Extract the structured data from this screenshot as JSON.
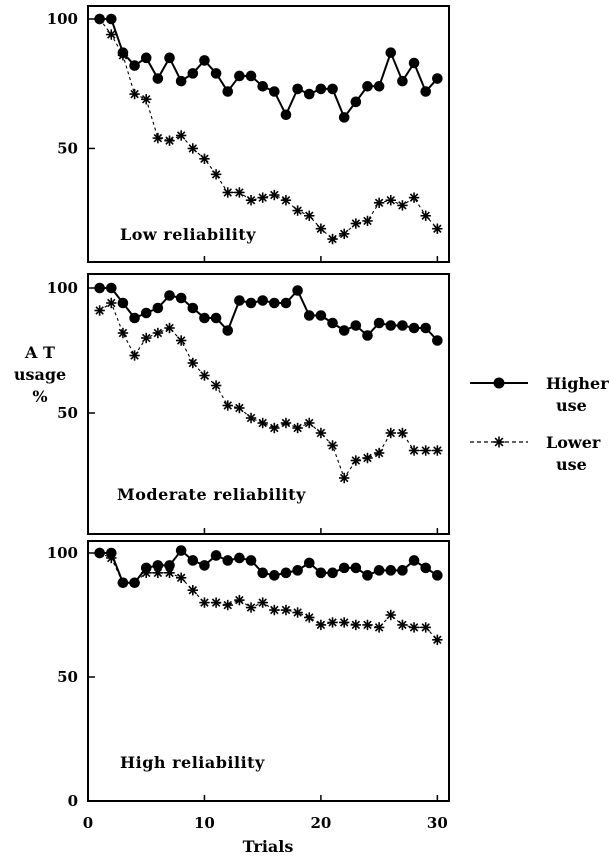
{
  "chart_data": {
    "type": "line",
    "xlabel": "Trials",
    "ylabel_lines": [
      "A T",
      "usage",
      "%"
    ],
    "xlim": [
      0,
      31
    ],
    "x_ticks": [
      0,
      10,
      20,
      30
    ],
    "x": [
      1,
      2,
      3,
      4,
      5,
      6,
      7,
      8,
      9,
      10,
      11,
      12,
      13,
      14,
      15,
      16,
      17,
      18,
      19,
      20,
      21,
      22,
      23,
      24,
      25,
      26,
      27,
      28,
      29,
      30
    ],
    "legend": {
      "placement": "right",
      "entries": [
        {
          "key": "higher",
          "line1": "Higher",
          "line2": "use",
          "marker": "circle",
          "line_style": "solid"
        },
        {
          "key": "lower",
          "line1": "Lower",
          "line2": "use",
          "marker": "asterisk",
          "line_style": "dashed"
        }
      ]
    },
    "panels": [
      {
        "label": "Low reliability",
        "ylim": [
          10,
          104
        ],
        "y_ticks": [
          50,
          100
        ],
        "series": {
          "higher": [
            100,
            100,
            87,
            82,
            85,
            77,
            85,
            76,
            79,
            84,
            79,
            72,
            78,
            78,
            74,
            72,
            63,
            73,
            71,
            73,
            73,
            62,
            68,
            74,
            74,
            87,
            76,
            83,
            72,
            77
          ],
          "lower": [
            100,
            94,
            86,
            71,
            69,
            54,
            53,
            55,
            50,
            46,
            40,
            33,
            33,
            30,
            31,
            32,
            30,
            26,
            24,
            19,
            15,
            17,
            21,
            22,
            29,
            30,
            28,
            31,
            24,
            19
          ]
        }
      },
      {
        "label": "Moderate reliability",
        "ylim": [
          10,
          104
        ],
        "y_ticks": [
          50,
          100
        ],
        "series": {
          "higher": [
            100,
            100,
            94,
            88,
            90,
            92,
            97,
            96,
            92,
            88,
            88,
            83,
            95,
            94,
            95,
            94,
            94,
            99,
            89,
            89,
            86,
            83,
            85,
            81,
            86,
            85,
            85,
            84,
            84,
            79
          ],
          "lower": [
            91,
            94,
            82,
            73,
            80,
            82,
            84,
            79,
            70,
            65,
            61,
            53,
            52,
            48,
            46,
            44,
            46,
            44,
            46,
            42,
            37,
            24,
            31,
            32,
            34,
            42,
            42,
            35,
            35,
            35
          ]
        }
      },
      {
        "label": "High reliability",
        "ylim": [
          0,
          104
        ],
        "y_ticks": [
          0,
          50,
          100
        ],
        "series": {
          "higher": [
            100,
            100,
            88,
            88,
            94,
            95,
            95,
            101,
            97,
            95,
            99,
            97,
            98,
            97,
            92,
            91,
            92,
            93,
            96,
            92,
            92,
            94,
            94,
            91,
            93,
            93,
            93,
            97,
            94,
            91
          ],
          "lower": [
            100,
            98,
            88,
            88,
            92,
            92,
            92,
            90,
            85,
            80,
            80,
            79,
            81,
            78,
            80,
            77,
            77,
            76,
            74,
            71,
            72,
            72,
            71,
            71,
            70,
            75,
            71,
            70,
            70,
            65
          ]
        }
      }
    ]
  }
}
